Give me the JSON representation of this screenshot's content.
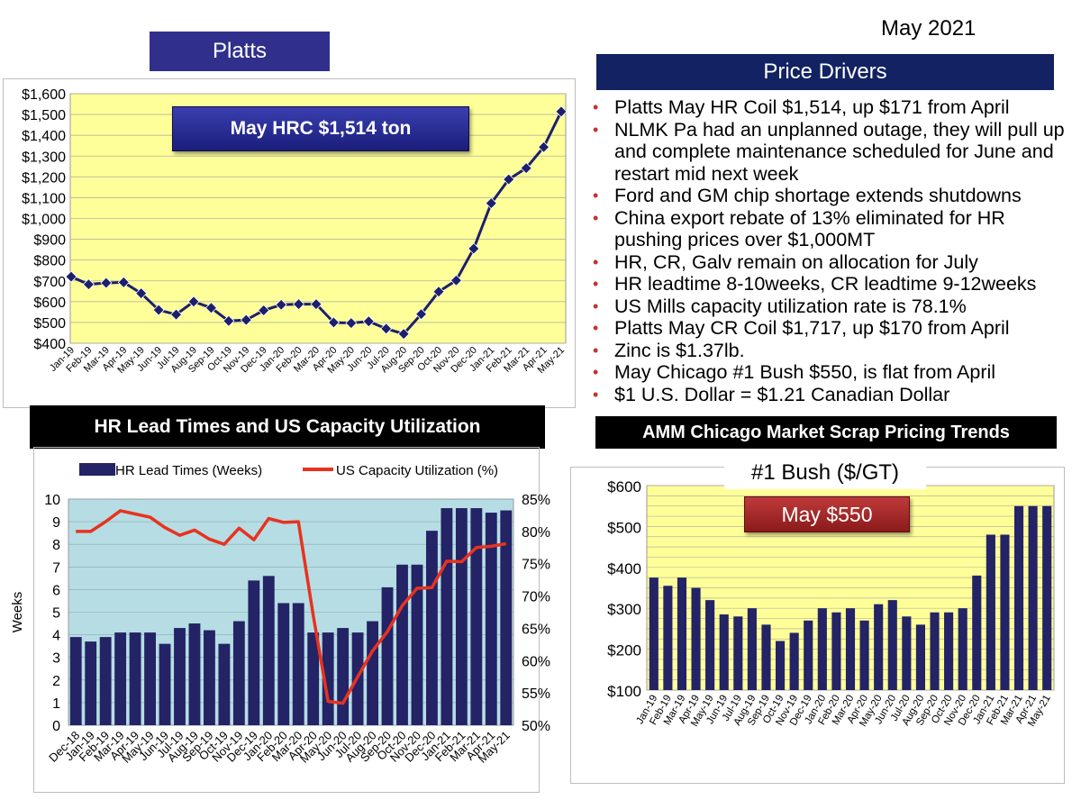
{
  "header": {
    "date": "May 2021",
    "platts_label": "Platts",
    "price_drivers_title": "Price Drivers",
    "hr_lead_title": "HR Lead Times and US Capacity Utilization",
    "amm_title": "AMM Chicago Market Scrap Pricing Trends"
  },
  "price_drivers": [
    "Platts May HR Coil $1,514, up $171 from April",
    "NLMK Pa had an unplanned outage, they will pull up and complete maintenance scheduled for June and restart mid next week",
    "Ford and GM chip shortage extends shutdowns",
    "China export rebate of 13% eliminated for HR pushing prices over $1,000MT",
    "HR, CR, Galv remain on allocation for July",
    "HR leadtime 8-10weeks, CR leadtime 9-12weeks",
    "US Mills capacity utilization rate is 78.1%",
    "Platts May CR Coil $1,717, up $170 from April",
    "Zinc is $1.37lb.",
    "May Chicago #1 Bush $550, is flat from April",
    "$1 U.S. Dollar = $1.21 Canadian Dollar"
  ],
  "colors": {
    "header_blue": "#30308c",
    "navy": "#122262",
    "plot_yellow": "#ffff99",
    "plot_teal": "#b6dde3",
    "bar_navy": "#232366",
    "line_red": "#e8321f",
    "bullet_red": "#c0352b"
  },
  "chart_data": [
    {
      "id": "platts",
      "type": "line",
      "title": "",
      "callout": "May HRC $1,514 ton",
      "categories": [
        "Jan-19",
        "Feb-19",
        "Mar-19",
        "Apr-19",
        "May-19",
        "Jun-19",
        "Jul-19",
        "Aug-19",
        "Sep-19",
        "Oct-19",
        "Nov-19",
        "Dec-19",
        "Jan-20",
        "Feb-20",
        "Mar-20",
        "Apr-20",
        "May-20",
        "Jun-20",
        "Jul-20",
        "Aug-20",
        "Sep-20",
        "Oct-20",
        "Nov-20",
        "Dec-20",
        "Jan-21",
        "Feb-21",
        "Mar-21",
        "Apr-21",
        "May-21"
      ],
      "values": [
        720,
        683,
        690,
        693,
        640,
        560,
        538,
        600,
        570,
        507,
        512,
        558,
        585,
        588,
        588,
        500,
        497,
        505,
        470,
        445,
        540,
        648,
        702,
        855,
        1073,
        1188,
        1242,
        1343,
        1514
      ],
      "ylim": [
        400,
        1600
      ],
      "yticks": [
        400,
        500,
        600,
        700,
        800,
        900,
        1000,
        1100,
        1200,
        1300,
        1400,
        1500,
        1600
      ],
      "ytick_labels": [
        "$400",
        "$500",
        "$600",
        "$700",
        "$800",
        "$900",
        "$1,000",
        "$1,100",
        "$1,200",
        "$1,300",
        "$1,400",
        "$1,500",
        "$1,600"
      ]
    },
    {
      "id": "lead",
      "type": "bar",
      "ylabel": "Weeks",
      "categories": [
        "Dec-18",
        "Jan-19",
        "Feb-19",
        "Mar-19",
        "Apr-19",
        "May-19",
        "Jun-19",
        "Jul-19",
        "Aug-19",
        "Sep-19",
        "Oct-19",
        "Nov-19",
        "Dec-19",
        "Jan-20",
        "Feb-20",
        "Mar-20",
        "Apr-20",
        "May-20",
        "Jun-20",
        "Jul-20",
        "Aug-20",
        "Sep-20",
        "Oct-20",
        "Nov-20",
        "Dec-20",
        "Jan-21",
        "Feb-21",
        "Mar-21",
        "Apr-21",
        "May-21"
      ],
      "series": [
        {
          "name": "HR Lead Times (Weeks)",
          "type": "bar",
          "values": [
            3.9,
            3.7,
            3.9,
            4.1,
            4.1,
            4.1,
            3.6,
            4.3,
            4.5,
            4.2,
            3.6,
            4.6,
            6.4,
            6.6,
            5.4,
            5.4,
            4.1,
            4.1,
            4.3,
            4.1,
            4.6,
            6.1,
            7.1,
            7.1,
            8.6,
            9.6,
            9.6,
            9.6,
            9.4,
            9.5
          ]
        },
        {
          "name": "US Capacity Utilization (%)",
          "type": "line",
          "values": [
            80.0,
            80.0,
            81.5,
            83.2,
            82.7,
            82.2,
            80.6,
            79.4,
            80.2,
            78.8,
            78.0,
            80.5,
            78.7,
            82.0,
            81.4,
            81.5,
            67.0,
            53.7,
            53.4,
            57.5,
            61.5,
            64.5,
            68.5,
            71.2,
            71.3,
            75.4,
            75.3,
            77.5,
            77.7,
            78.1
          ]
        }
      ],
      "ylim_left": [
        0,
        10
      ],
      "yticks_left": [
        "0",
        "1",
        "2",
        "3",
        "4",
        "5",
        "6",
        "7",
        "8",
        "9",
        "10"
      ],
      "ylim_right": [
        50,
        85
      ],
      "yticks_right": [
        "50%",
        "55%",
        "60%",
        "65%",
        "70%",
        "75%",
        "80%",
        "85%"
      ]
    },
    {
      "id": "bush",
      "type": "bar",
      "title": "#1 Bush ($/GT)",
      "callout": "May $550",
      "categories": [
        "Jan-19",
        "Feb-19",
        "Mar-19",
        "Apr-19",
        "May-19",
        "Jun-19",
        "Jul-19",
        "Aug-19",
        "Sep-19",
        "Oct-19",
        "Nov-19",
        "Dec-19",
        "Jan-20",
        "Feb-20",
        "Mar-20",
        "Apr-20",
        "May-20",
        "Jun-20",
        "Jul-20",
        "Aug-20",
        "Sep-20",
        "Oct-20",
        "Nov-20",
        "Dec-20",
        "Jan-21",
        "Feb-21",
        "Mar-21",
        "Apr-21",
        "May-21"
      ],
      "values": [
        375,
        355,
        375,
        350,
        320,
        285,
        280,
        300,
        260,
        220,
        240,
        270,
        300,
        290,
        300,
        270,
        310,
        320,
        280,
        260,
        290,
        290,
        300,
        380,
        480,
        480,
        550,
        550,
        550
      ],
      "ylim": [
        100,
        600
      ],
      "yticks": [
        100,
        200,
        300,
        400,
        500,
        600
      ],
      "ytick_labels": [
        "$100",
        "$200",
        "$300",
        "$400",
        "$500",
        "$600"
      ]
    }
  ]
}
